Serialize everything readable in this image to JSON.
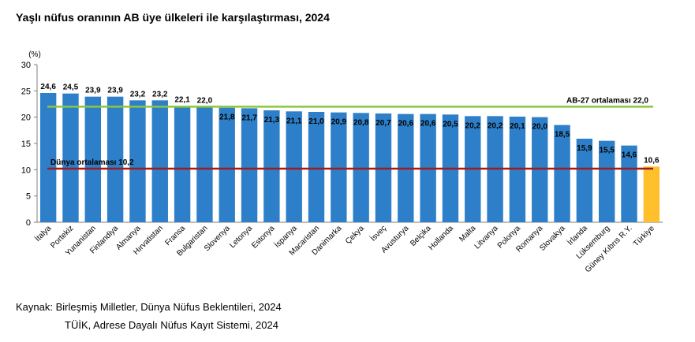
{
  "title": "Yaşlı nüfus oranının AB üye ülkeleri ile karşılaştırması, 2024",
  "unit_label": "(%)",
  "source": {
    "line1": "Kaynak: Birleşmiş Milletler, Dünya Nüfus Beklentileri, 2024",
    "line2": "TÜİK, Adrese Dayalı Nüfus Kayıt Sistemi, 2024"
  },
  "colors": {
    "bar": "#2e7fc9",
    "highlight": "#ffc02c",
    "eu_line": "#8dc63f",
    "world_line": "#a01c1c",
    "axis": "#7f7f7f"
  },
  "chart_data": {
    "type": "bar",
    "title": "Yaşlı nüfus oranının AB üye ülkeleri ile karşılaştırması, 2024",
    "ylabel": "(%)",
    "ylim": [
      0,
      30
    ],
    "yticks": [
      "0",
      "5",
      "10",
      "15",
      "20",
      "25",
      "30"
    ],
    "grid": false,
    "categories": [
      "İtalya",
      "Portekiz",
      "Yunanistan",
      "Finlandiya",
      "Almanya",
      "Hırvatistan",
      "Fransa",
      "Bulgaristan",
      "Slovenya",
      "Letonya",
      "Estonya",
      "İspanya",
      "Macaristan",
      "Danimarka",
      "Çekya",
      "İsveç",
      "Avusturya",
      "Belçika",
      "Hollanda",
      "Malta",
      "Litvanya",
      "Polonya",
      "Romanya",
      "Slovakya",
      "İrlanda",
      "Lüksemburg",
      "Güney Kıbrıs R.Y.",
      "Türkiye"
    ],
    "values": [
      24.6,
      24.5,
      23.9,
      23.9,
      23.2,
      23.2,
      22.1,
      22.0,
      21.8,
      21.7,
      21.3,
      21.1,
      21.0,
      20.9,
      20.8,
      20.7,
      20.6,
      20.6,
      20.5,
      20.2,
      20.2,
      20.1,
      20.0,
      18.5,
      15.9,
      15.5,
      14.6,
      10.6
    ],
    "value_labels": [
      "24,6",
      "24,5",
      "23,9",
      "23,9",
      "23,2",
      "23,2",
      "22,1",
      "22,0",
      "21,8",
      "21,7",
      "21,3",
      "21,1",
      "21,0",
      "20,9",
      "20,8",
      "20,7",
      "20,6",
      "20,6",
      "20,5",
      "20,2",
      "20,2",
      "20,1",
      "20,0",
      "18,5",
      "15,9",
      "15,5",
      "14,6",
      "10,6"
    ],
    "highlight_category": "Türkiye",
    "reference_lines": [
      {
        "label": "AB-27 ortalaması  22,0",
        "value": 22.0
      },
      {
        "label": "Dünya ortalaması  10,2",
        "value": 10.2
      }
    ]
  }
}
